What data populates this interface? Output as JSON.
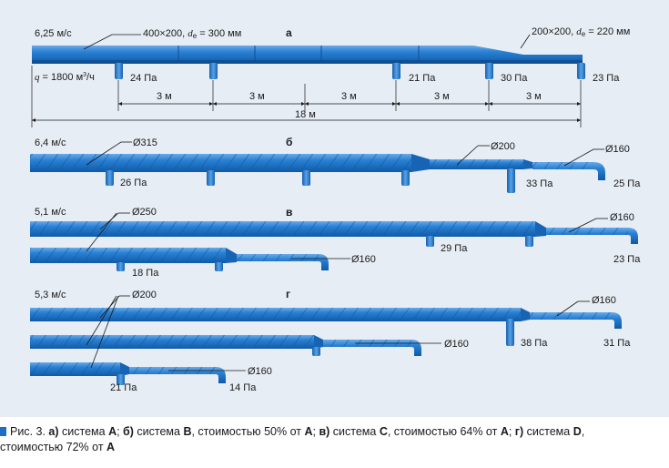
{
  "diagram_a": {
    "letter": "а",
    "speed": "6,25 м/с",
    "duct_main_prefix": "400×200,",
    "duct_main_d": "d",
    "duct_main_sub": "e",
    "duct_main_value": " = 300 мм",
    "duct_end_prefix": "200×200,",
    "duct_end_d": "d",
    "duct_end_sub": "e",
    "duct_end_value": " = 220 мм",
    "flow_q": "q",
    "flow_value": " = 1800 м",
    "flow_exp": "3",
    "flow_unit": "/ч",
    "pressures": [
      "24 Па",
      "21 Па",
      "30 Па",
      "23 Па"
    ],
    "spacings": [
      "3 м",
      "3 м",
      "3 м",
      "3 м",
      "3 м"
    ],
    "total_length": "18 м"
  },
  "diagram_b": {
    "letter": "б",
    "speed": "6,4 м/с",
    "diameters": [
      "Ø315",
      "Ø200",
      "Ø160"
    ],
    "pressures": [
      "26 Па",
      "33 Па",
      "25 Па"
    ]
  },
  "diagram_c": {
    "letter": "в",
    "speed": "5,1 м/с",
    "diameters": [
      "Ø250",
      "Ø160",
      "Ø160"
    ],
    "pressures": [
      "29 Па",
      "23 Па",
      "18 Па"
    ]
  },
  "diagram_d": {
    "letter": "г",
    "speed": "5,3 м/с",
    "diameters": [
      "Ø200",
      "Ø160",
      "Ø160",
      "Ø160"
    ],
    "pressures": [
      "38 Па",
      "31 Па",
      "21 Па",
      "14 Па"
    ]
  },
  "caption": {
    "prefix": "Рис. 3. ",
    "parts": [
      {
        "letter": "а)",
        "text": " система ",
        "sys": "A",
        "tail": "; "
      },
      {
        "letter": "б)",
        "text": " система ",
        "sys": "B",
        "tail": ", стоимостью 50% от "
      },
      {
        "ref": "A",
        "tail": "; "
      },
      {
        "letter": "в)",
        "text": " система ",
        "sys": "C",
        "tail": ", стоимостью 64% от "
      },
      {
        "ref": "A",
        "tail": "; "
      },
      {
        "letter": "г)",
        "text": " система ",
        "sys": "D",
        "tail": ","
      },
      {
        "text": " стоимостью 72% от ",
        "ref": "A"
      }
    ]
  },
  "colors": {
    "duct": "#1d6fc2",
    "duct_light": "#4e98e0",
    "duct_dark": "#0e4f96",
    "background": "#e7edf4"
  }
}
